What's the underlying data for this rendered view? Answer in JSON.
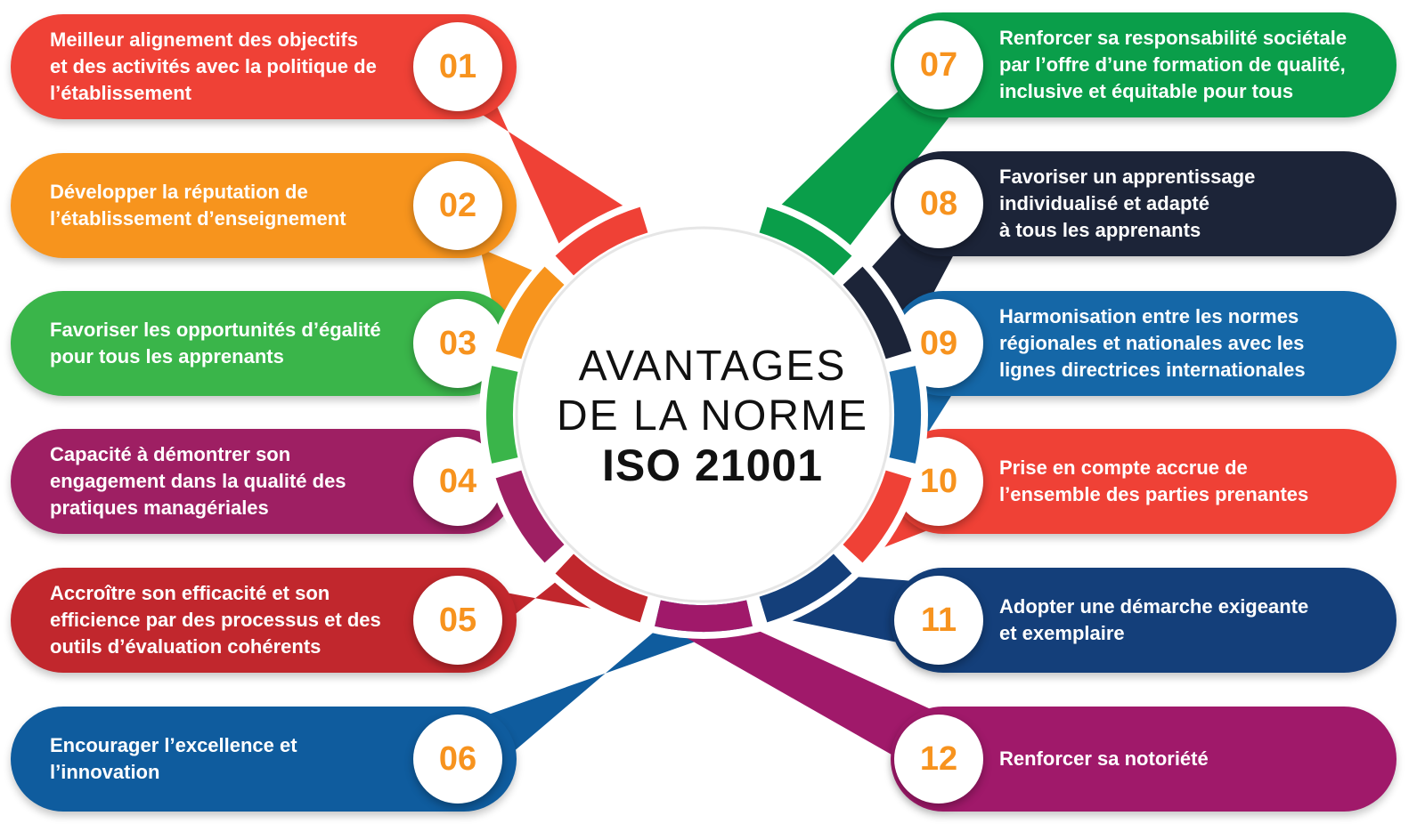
{
  "title": {
    "line1": "AVANTAGES",
    "line2": "DE LA NORME",
    "line3": "ISO 21001"
  },
  "colors": {
    "red": "#ef4136",
    "orange": "#f7941d",
    "green": "#3ab54a",
    "purple": "#9e1f63",
    "crimson": "#c1272d",
    "blue": "#0f5c9e",
    "green_dark": "#0a9e4a",
    "navy": "#1c2438",
    "teal_blue": "#1567a7",
    "navy_blue": "#143f7a",
    "magenta": "#a0196a",
    "number": "#f7931e"
  },
  "items": [
    {
      "num": "01",
      "text": "Meilleur alignement des objectifs\net des activités avec la politique de\nl’établissement",
      "color": "#ef4136"
    },
    {
      "num": "02",
      "text": "Développer la réputation de\nl’établissement d’enseignement",
      "color": "#f7941d"
    },
    {
      "num": "03",
      "text": "Favoriser les opportunités d’égalité\npour tous les apprenants",
      "color": "#3ab54a"
    },
    {
      "num": "04",
      "text": "Capacité à démontrer son\nengagement dans la qualité des\npratiques managériales",
      "color": "#9e1f63"
    },
    {
      "num": "05",
      "text": "Accroître son efficacité et son\nefficience par des processus et des\noutils  d’évaluation cohérents",
      "color": "#c1272d"
    },
    {
      "num": "06",
      "text": "Encourager l’excellence et\nl’innovation",
      "color": "#0f5c9e"
    },
    {
      "num": "07",
      "text": "Renforcer sa responsabilité sociétale\npar l’offre d’une formation de qualité,\ninclusive et équitable pour tous",
      "color": "#0a9e4a"
    },
    {
      "num": "08",
      "text": "Favoriser un apprentissage\nindividualisé et adapté\nà tous les apprenants",
      "color": "#1c2438"
    },
    {
      "num": "09",
      "text": "Harmonisation entre les normes\nrégionales et nationales avec les\nlignes directrices internationales",
      "color": "#1567a7"
    },
    {
      "num": "10",
      "text": "Prise en compte accrue de\nl’ensemble des parties prenantes",
      "color": "#ef4136"
    },
    {
      "num": "11",
      "text": "Adopter une démarche exigeante\net exemplaire",
      "color": "#143f7a"
    },
    {
      "num": "12",
      "text": "Renforcer sa notoriété",
      "color": "#a0196a"
    }
  ]
}
